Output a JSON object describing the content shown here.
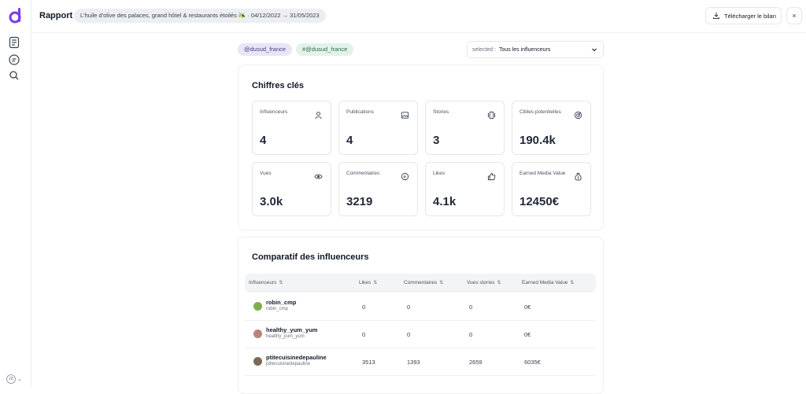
{
  "sidebar": {
    "logo": "d",
    "icons": [
      "report-icon",
      "chat-icon",
      "search-icon"
    ],
    "user_initials": "JD"
  },
  "header": {
    "title": "Rapport",
    "campaign": "L'huile d'olive des palaces, grand hôtel & restaurants étoilés 🫒 · 04/12/2022 → 31/05/2023",
    "download_label": "Télécharger le bilan",
    "close_label": "×"
  },
  "filters": {
    "tags": [
      "@dusud_france",
      "#@dusud_france"
    ],
    "select_prefix": "selected :",
    "select_value": "Tous les influenceurs"
  },
  "key_figures": {
    "title": "Chiffres clés",
    "items": [
      {
        "label": "Influenceurs",
        "value": "4",
        "icon": "user-icon"
      },
      {
        "label": "Publications",
        "value": "4",
        "icon": "image-icon"
      },
      {
        "label": "Stories",
        "value": "3",
        "icon": "stories-icon"
      },
      {
        "label": "Cibles potentielles",
        "value": "190.4k",
        "icon": "target-icon"
      },
      {
        "label": "Vues",
        "value": "3.0k",
        "icon": "eye-icon"
      },
      {
        "label": "Commentaires",
        "value": "3219",
        "icon": "comment-icon"
      },
      {
        "label": "Likes",
        "value": "4.1k",
        "icon": "thumbs-up-icon"
      },
      {
        "label": "Earned Media Value",
        "value": "12450€",
        "icon": "money-bag-icon"
      }
    ]
  },
  "comparison": {
    "title": "Comparatif des influenceurs",
    "columns": [
      "Influenceurs",
      "Likes",
      "Commentaires",
      "Vues stories",
      "Earned Media Value"
    ],
    "sort_glyph": "⇅",
    "rows": [
      {
        "name": "robin_cmp",
        "handle": "robin_cmp",
        "likes": "0",
        "comments": "0",
        "story_views": "0",
        "emv": "0€",
        "avatar_color": "#7fae4f"
      },
      {
        "name": "healthy_yum_yum",
        "handle": "healthy_yum_yum",
        "likes": "0",
        "comments": "0",
        "story_views": "0",
        "emv": "0€",
        "avatar_color": "#b9857a"
      },
      {
        "name": "ptitecuisinedepauline",
        "handle": "ptitecuisinedepauline",
        "likes": "3513",
        "comments": "1393",
        "story_views": "2659",
        "emv": "6035€",
        "avatar_color": "#7b6a55"
      }
    ]
  }
}
